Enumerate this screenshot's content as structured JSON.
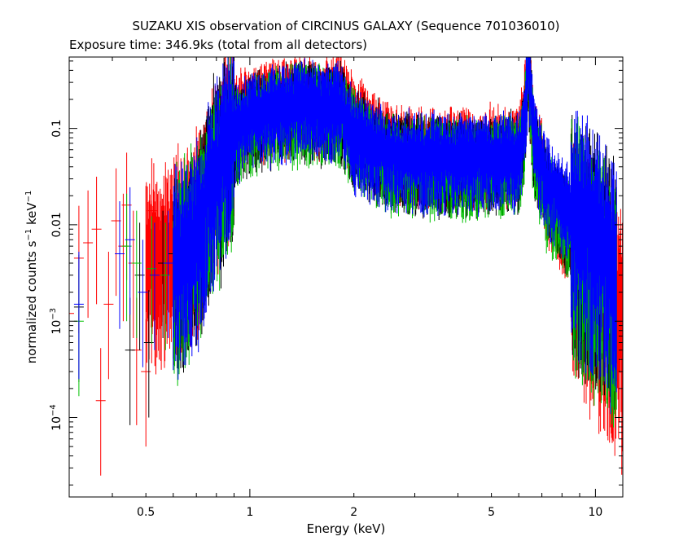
{
  "chart_data": {
    "type": "scatter",
    "title": "SUZAKU XIS observation of CIRCINUS GALAXY (Sequence 701036010)",
    "subtitle": "Exposure time: 346.9ks (total from all detectors)",
    "xlabel": "Energy (keV)",
    "ylabel_parts": {
      "base": "normalized counts s",
      "sup1": "−1",
      "mid": " keV",
      "sup2": "−1"
    },
    "x_scale": "log",
    "y_scale": "log",
    "xlim": [
      0.3,
      12
    ],
    "ylim": [
      1.5e-05,
      0.55
    ],
    "grid": false,
    "x_ticks": [
      {
        "value": 0.5,
        "label": "0.5"
      },
      {
        "value": 1,
        "label": "1"
      },
      {
        "value": 2,
        "label": "2"
      },
      {
        "value": 5,
        "label": "5"
      },
      {
        "value": 10,
        "label": "10"
      }
    ],
    "y_ticks": [
      {
        "value": 0.1,
        "label": "0.1"
      },
      {
        "value": 0.01,
        "label": "0.01"
      },
      {
        "value": 0.001,
        "base": "10",
        "exp": "−3"
      },
      {
        "value": 0.0001,
        "base": "10",
        "exp": "−4"
      }
    ],
    "series": [
      {
        "color": "#ff0000",
        "e_min": 0.5,
        "e_max": 12,
        "model": [
          [
            0.5,
            0.004
          ],
          [
            0.6,
            0.006
          ],
          [
            0.7,
            0.009
          ],
          [
            0.8,
            0.05
          ],
          [
            0.9,
            0.13
          ],
          [
            1.0,
            0.16
          ],
          [
            1.2,
            0.19
          ],
          [
            1.4,
            0.22
          ],
          [
            1.6,
            0.17
          ],
          [
            1.8,
            0.25
          ],
          [
            2.0,
            0.12
          ],
          [
            2.2,
            0.09
          ],
          [
            2.5,
            0.065
          ],
          [
            3.0,
            0.06
          ],
          [
            4.0,
            0.058
          ],
          [
            5.0,
            0.058
          ],
          [
            6.0,
            0.06
          ],
          [
            6.2,
            0.13
          ],
          [
            6.4,
            0.52
          ],
          [
            6.6,
            0.1
          ],
          [
            6.8,
            0.06
          ],
          [
            7.0,
            0.05
          ],
          [
            7.2,
            0.02
          ],
          [
            8.0,
            0.012
          ],
          [
            9.0,
            0.006
          ],
          [
            10.0,
            0.003
          ],
          [
            11.0,
            0.0015
          ],
          [
            12.0,
            0.0008
          ]
        ],
        "low_points": [
          [
            0.3,
            0.0012
          ],
          [
            0.32,
            0.0045
          ],
          [
            0.34,
            0.0065
          ],
          [
            0.36,
            0.009
          ],
          [
            0.37,
            0.00015
          ],
          [
            0.39,
            0.0015
          ],
          [
            0.41,
            0.011
          ],
          [
            0.43,
            0.006
          ],
          [
            0.44,
            0.016
          ],
          [
            0.46,
            0.004
          ],
          [
            0.47,
            0.0005
          ],
          [
            0.5,
            0.0003
          ],
          [
            0.52,
            0.014
          ],
          [
            0.55,
            0.005
          ],
          [
            0.58,
            0.008
          ],
          [
            0.62,
            0.02
          ],
          [
            0.66,
            0.018
          ],
          [
            0.7,
            0.03
          ]
        ]
      },
      {
        "color": "#000000",
        "e_min": 0.6,
        "e_max": 11.5,
        "model": [
          [
            0.6,
            0.004
          ],
          [
            0.7,
            0.008
          ],
          [
            0.8,
            0.04
          ],
          [
            0.9,
            0.1
          ],
          [
            1.0,
            0.13
          ],
          [
            1.2,
            0.16
          ],
          [
            1.4,
            0.18
          ],
          [
            1.6,
            0.16
          ],
          [
            1.8,
            0.17
          ],
          [
            2.0,
            0.09
          ],
          [
            2.2,
            0.07
          ],
          [
            2.5,
            0.055
          ],
          [
            3.0,
            0.05
          ],
          [
            4.0,
            0.048
          ],
          [
            5.0,
            0.048
          ],
          [
            6.0,
            0.05
          ],
          [
            6.2,
            0.1
          ],
          [
            6.4,
            0.45
          ],
          [
            6.6,
            0.09
          ],
          [
            6.8,
            0.05
          ],
          [
            7.0,
            0.04
          ],
          [
            7.2,
            0.025
          ],
          [
            8.0,
            0.014
          ],
          [
            9.0,
            0.009
          ],
          [
            10.0,
            0.006
          ],
          [
            11.0,
            0.004
          ],
          [
            11.5,
            0.003
          ]
        ],
        "low_points": [
          [
            0.32,
            0.0014
          ],
          [
            0.42,
            0.005
          ],
          [
            0.45,
            0.0005
          ],
          [
            0.48,
            0.003
          ],
          [
            0.51,
            0.0006
          ],
          [
            0.56,
            0.004
          ],
          [
            0.6,
            0.005
          ],
          [
            0.65,
            0.006
          ]
        ]
      },
      {
        "color": "#00c000",
        "e_min": 0.6,
        "e_max": 11.5,
        "model": [
          [
            0.6,
            0.004
          ],
          [
            0.7,
            0.008
          ],
          [
            0.8,
            0.035
          ],
          [
            0.9,
            0.09
          ],
          [
            1.0,
            0.12
          ],
          [
            1.2,
            0.15
          ],
          [
            1.4,
            0.17
          ],
          [
            1.6,
            0.15
          ],
          [
            1.8,
            0.16
          ],
          [
            2.0,
            0.085
          ],
          [
            2.2,
            0.065
          ],
          [
            2.5,
            0.05
          ],
          [
            3.0,
            0.045
          ],
          [
            4.0,
            0.045
          ],
          [
            5.0,
            0.045
          ],
          [
            6.0,
            0.048
          ],
          [
            6.2,
            0.09
          ],
          [
            6.4,
            0.4
          ],
          [
            6.6,
            0.08
          ],
          [
            6.8,
            0.045
          ],
          [
            7.0,
            0.035
          ],
          [
            7.2,
            0.02
          ],
          [
            8.0,
            0.012
          ],
          [
            9.0,
            0.008
          ],
          [
            10.0,
            0.005
          ],
          [
            11.0,
            0.003
          ],
          [
            11.5,
            0.0025
          ]
        ],
        "low_points": [
          [
            0.32,
            0.001
          ],
          [
            0.44,
            0.006
          ],
          [
            0.47,
            0.004
          ],
          [
            0.52,
            0.0035
          ],
          [
            0.57,
            0.003
          ],
          [
            0.62,
            0.004
          ],
          [
            0.68,
            0.006
          ]
        ]
      },
      {
        "color": "#0000ff",
        "e_min": 0.6,
        "e_max": 11.5,
        "model": [
          [
            0.6,
            0.004
          ],
          [
            0.7,
            0.008
          ],
          [
            0.8,
            0.04
          ],
          [
            0.9,
            0.1
          ],
          [
            1.0,
            0.13
          ],
          [
            1.2,
            0.16
          ],
          [
            1.4,
            0.19
          ],
          [
            1.6,
            0.16
          ],
          [
            1.8,
            0.17
          ],
          [
            2.0,
            0.09
          ],
          [
            2.2,
            0.07
          ],
          [
            2.5,
            0.055
          ],
          [
            3.0,
            0.05
          ],
          [
            4.0,
            0.05
          ],
          [
            5.0,
            0.05
          ],
          [
            6.0,
            0.052
          ],
          [
            6.2,
            0.1
          ],
          [
            6.4,
            0.48
          ],
          [
            6.6,
            0.1
          ],
          [
            6.8,
            0.055
          ],
          [
            7.0,
            0.045
          ],
          [
            7.2,
            0.028
          ],
          [
            8.0,
            0.018
          ],
          [
            9.0,
            0.012
          ],
          [
            10.0,
            0.007
          ],
          [
            11.0,
            0.004
          ],
          [
            11.5,
            0.003
          ]
        ],
        "low_points": [
          [
            0.32,
            0.0015
          ],
          [
            0.42,
            0.005
          ],
          [
            0.45,
            0.007
          ],
          [
            0.49,
            0.002
          ],
          [
            0.53,
            0.003
          ],
          [
            0.58,
            0.004
          ],
          [
            0.64,
            0.006
          ]
        ]
      }
    ]
  }
}
